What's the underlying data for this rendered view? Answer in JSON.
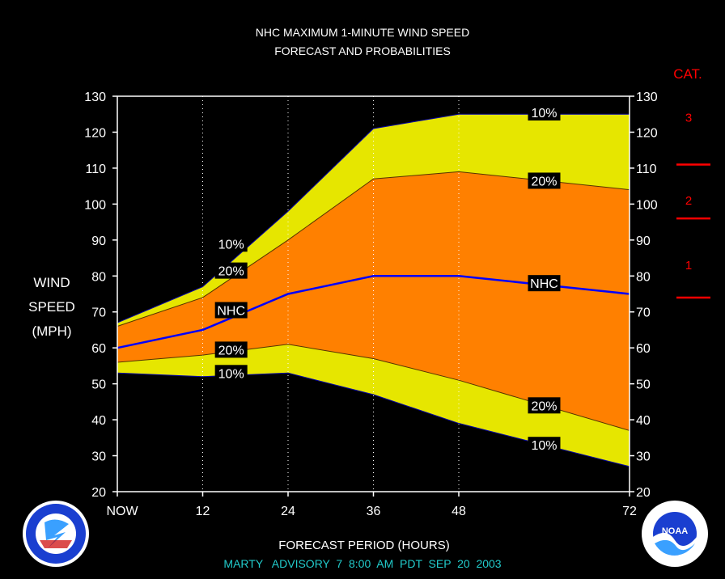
{
  "chart_data": {
    "type": "area",
    "title_line1": "NHC MAXIMUM 1-MINUTE WIND SPEED",
    "title_line2": "FORECAST AND PROBABILITIES",
    "ylabel_lines": [
      "WIND",
      "SPEED",
      "(MPH)"
    ],
    "xlabel": "FORECAST PERIOD (HOURS)",
    "x": [
      0,
      12,
      24,
      36,
      48,
      72
    ],
    "x_tick_labels": [
      "NOW",
      "12",
      "24",
      "36",
      "48",
      "72"
    ],
    "ylim": [
      20,
      130
    ],
    "y_ticks": [
      20,
      30,
      40,
      50,
      60,
      70,
      80,
      90,
      100,
      110,
      120,
      130
    ],
    "series": [
      {
        "name": "10%",
        "values": [
          67,
          77,
          98,
          121,
          125,
          125
        ]
      },
      {
        "name": "20%",
        "values": [
          66,
          74,
          90,
          107,
          109,
          104
        ]
      },
      {
        "name": "NHC",
        "values": [
          60,
          65,
          75,
          80,
          80,
          75
        ]
      },
      {
        "name": "20%",
        "values": [
          56,
          58,
          61,
          57,
          51,
          37
        ]
      },
      {
        "name": "10%",
        "values": [
          53,
          52,
          53,
          47,
          39,
          27
        ]
      }
    ],
    "band_labels": [
      {
        "text": "10%",
        "x": 16,
        "y": 89
      },
      {
        "text": "20%",
        "x": 16,
        "y": 81.5
      },
      {
        "text": "NHC",
        "x": 16,
        "y": 70.5
      },
      {
        "text": "20%",
        "x": 16,
        "y": 59.5
      },
      {
        "text": "10%",
        "x": 16,
        "y": 53
      },
      {
        "text": "10%",
        "x": 60,
        "y": 125.5
      },
      {
        "text": "20%",
        "x": 60,
        "y": 106.5
      },
      {
        "text": "NHC",
        "x": 60,
        "y": 78
      },
      {
        "text": "20%",
        "x": 60,
        "y": 44
      },
      {
        "text": "10%",
        "x": 60,
        "y": 33
      }
    ],
    "category": {
      "title": "CAT.",
      "labels": [
        {
          "text": "3",
          "y": 124
        },
        {
          "text": "2",
          "y": 101
        },
        {
          "text": "1",
          "y": 83
        }
      ],
      "thresholds": [
        111,
        96,
        74
      ]
    },
    "colors": {
      "outer_band": "#e6e600",
      "inner_band": "#ff8000",
      "nhc_line": "#0000ff",
      "text": "#ffffff",
      "category": "#ff0000",
      "footer": "#22cccc"
    }
  },
  "footer": "MARTY   ADVISORY  7  8:00  AM  PDT  SEP  20  2003",
  "logos": {
    "left_icon": "nws-logo-icon",
    "right_icon": "noaa-logo-icon",
    "right_text": "NOAA"
  }
}
